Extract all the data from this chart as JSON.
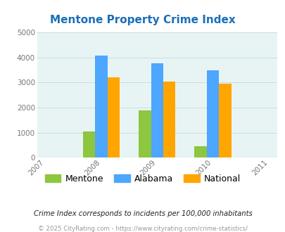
{
  "title": "Mentone Property Crime Index",
  "title_color": "#1a6fba",
  "years": [
    2007,
    2008,
    2009,
    2010,
    2011
  ],
  "bar_years": [
    2008,
    2009,
    2010
  ],
  "mentone": [
    1050,
    1900,
    460
  ],
  "alabama": [
    4080,
    3780,
    3500
  ],
  "national": [
    3200,
    3050,
    2960
  ],
  "mentone_color": "#8dc63f",
  "alabama_color": "#4da6ff",
  "national_color": "#ffa500",
  "bg_color": "#e8f4f4",
  "ylim": [
    0,
    5000
  ],
  "yticks": [
    0,
    1000,
    2000,
    3000,
    4000,
    5000
  ],
  "bar_width": 0.22,
  "legend_labels": [
    "Mentone",
    "Alabama",
    "National"
  ],
  "footnote1": "Crime Index corresponds to incidents per 100,000 inhabitants",
  "footnote2": "© 2025 CityRating.com - https://www.cityrating.com/crime-statistics/",
  "grid_color": "#c8dede",
  "xtick_labels": [
    "2007",
    "2008",
    "2009",
    "2010",
    "2011"
  ],
  "xtick_positions": [
    0,
    1,
    2,
    3,
    4
  ],
  "bar_positions": [
    1,
    2,
    3
  ]
}
